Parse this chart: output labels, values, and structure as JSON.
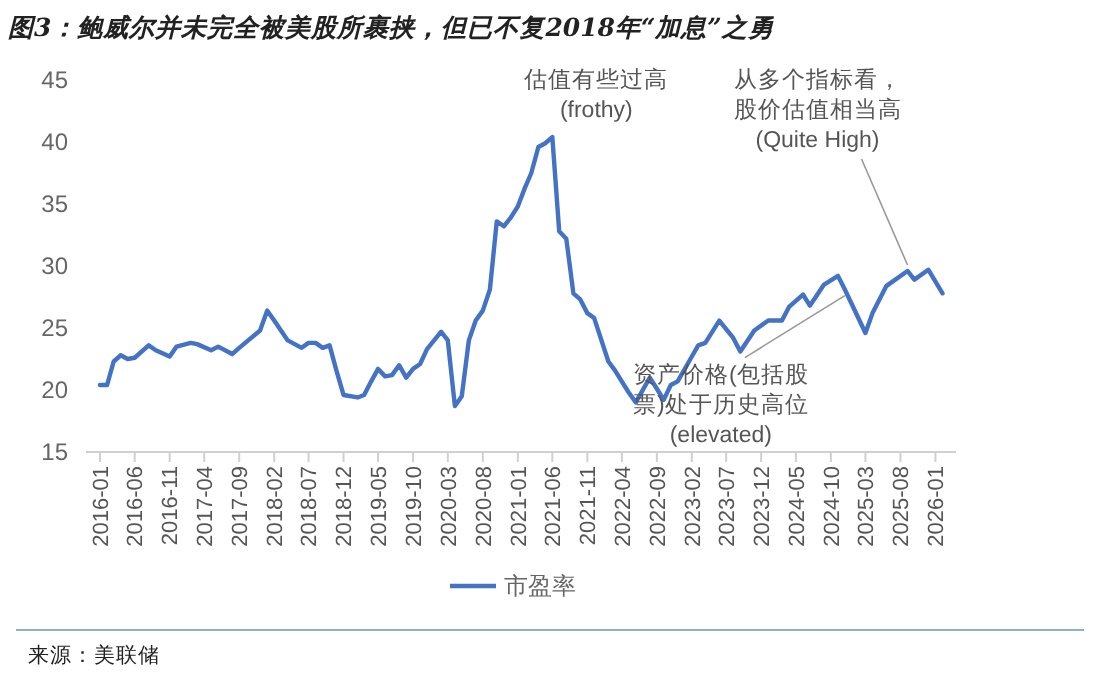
{
  "chart_data": {
    "type": "line",
    "title": "图3：鲍威尔并未完全被美股所裹挟，但已不复2018年“加息”之勇",
    "x": [
      "2016-01",
      "2016-02",
      "2016-03",
      "2016-04",
      "2016-05",
      "2016-06",
      "2016-08",
      "2016-09",
      "2016-11",
      "2016-12",
      "2017-02",
      "2017-03",
      "2017-05",
      "2017-06",
      "2017-08",
      "2017-09",
      "2017-12",
      "2018-01",
      "2018-02",
      "2018-04",
      "2018-06",
      "2018-07",
      "2018-08",
      "2018-09",
      "2018-10",
      "2018-11",
      "2018-12",
      "2019-02",
      "2019-03",
      "2019-04",
      "2019-05",
      "2019-06",
      "2019-07",
      "2019-08",
      "2019-09",
      "2019-10",
      "2019-11",
      "2019-12",
      "2020-01",
      "2020-02",
      "2020-03",
      "2020-04",
      "2020-05",
      "2020-06",
      "2020-07",
      "2020-08",
      "2020-09",
      "2020-10",
      "2020-11",
      "2020-12",
      "2021-01",
      "2021-02",
      "2021-03",
      "2021-04",
      "2021-05",
      "2021-06",
      "2021-07",
      "2021-08",
      "2021-09",
      "2021-10",
      "2021-11",
      "2021-12",
      "2022-02",
      "2022-03",
      "2022-05",
      "2022-06",
      "2022-08",
      "2022-09",
      "2022-10",
      "2022-11",
      "2022-12",
      "2023-02",
      "2023-03",
      "2023-04",
      "2023-06",
      "2023-08",
      "2023-09",
      "2023-11",
      "2024-01",
      "2024-03",
      "2024-04",
      "2024-06",
      "2024-07",
      "2024-09",
      "2024-11",
      "2024-12",
      "2025-03",
      "2025-04",
      "2025-06",
      "2025-09",
      "2025-10",
      "2025-12",
      "2026-02"
    ],
    "series": [
      {
        "name": "市盈率",
        "color": "#4472c4",
        "values": [
          20.4,
          20.4,
          22.3,
          22.8,
          22.5,
          22.6,
          23.6,
          23.2,
          22.7,
          23.5,
          23.8,
          23.7,
          23.2,
          23.5,
          22.9,
          23.4,
          24.8,
          26.4,
          25.6,
          24.0,
          23.4,
          23.8,
          23.8,
          23.4,
          23.6,
          21.5,
          19.6,
          19.4,
          19.6,
          20.7,
          21.7,
          21.1,
          21.2,
          22.0,
          21.0,
          21.7,
          22.1,
          23.3,
          24.0,
          24.7,
          24.0,
          18.7,
          19.5,
          24.0,
          25.6,
          26.4,
          28.1,
          33.6,
          33.2,
          33.9,
          34.8,
          36.3,
          37.5,
          39.6,
          39.9,
          40.4,
          32.8,
          32.2,
          27.8,
          27.3,
          26.2,
          25.8,
          22.3,
          21.6,
          19.8,
          19.0,
          21.0,
          20.1,
          19.2,
          20.4,
          20.7,
          22.7,
          23.6,
          23.8,
          25.6,
          24.2,
          23.1,
          24.8,
          25.6,
          25.6,
          26.7,
          27.7,
          26.8,
          28.5,
          29.2,
          28.1,
          24.6,
          26.2,
          28.4,
          29.6,
          28.9,
          29.7,
          27.8
        ]
      }
    ],
    "xlim": [
      "2015-11",
      "2026-04"
    ],
    "xticks": [
      "2016-01",
      "2016-06",
      "2016-11",
      "2017-04",
      "2017-09",
      "2018-02",
      "2018-07",
      "2018-12",
      "2019-05",
      "2019-10",
      "2020-03",
      "2020-08",
      "2021-01",
      "2021-06",
      "2021-11",
      "2022-04",
      "2022-09",
      "2023-02",
      "2023-07",
      "2023-12",
      "2024-05",
      "2024-10",
      "2025-03",
      "2025-08",
      "2026-01"
    ],
    "ylim": [
      15,
      45
    ],
    "yticks": [
      15,
      20,
      25,
      30,
      35,
      40,
      45
    ],
    "grid": false,
    "legend": "bottom",
    "marker": "none",
    "line_style": "solid",
    "annotations": [
      {
        "text": "估值有些过高(frothy)",
        "x": "2021-06",
        "y": 40.4
      },
      {
        "text": "资产价格(包括股票)处于历史高位(elevated)",
        "x": "2024-12",
        "y": 28.1
      },
      {
        "text": "从多个指标看，股价估值相当高(Quite High)",
        "x": "2025-09",
        "y": 29.6
      },
      "来源：美联储"
    ]
  }
}
